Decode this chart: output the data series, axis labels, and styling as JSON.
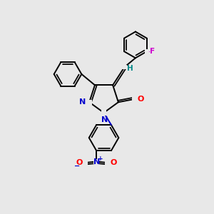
{
  "bg_color": "#e8e8e8",
  "bond_color": "#000000",
  "N_color": "#0000cc",
  "O_color": "#ff0000",
  "F_color": "#cc00cc",
  "H_color": "#008888",
  "figsize": [
    3.0,
    3.0
  ],
  "dpi": 100,
  "xlim": [
    0,
    10
  ],
  "ylim": [
    0,
    10
  ]
}
